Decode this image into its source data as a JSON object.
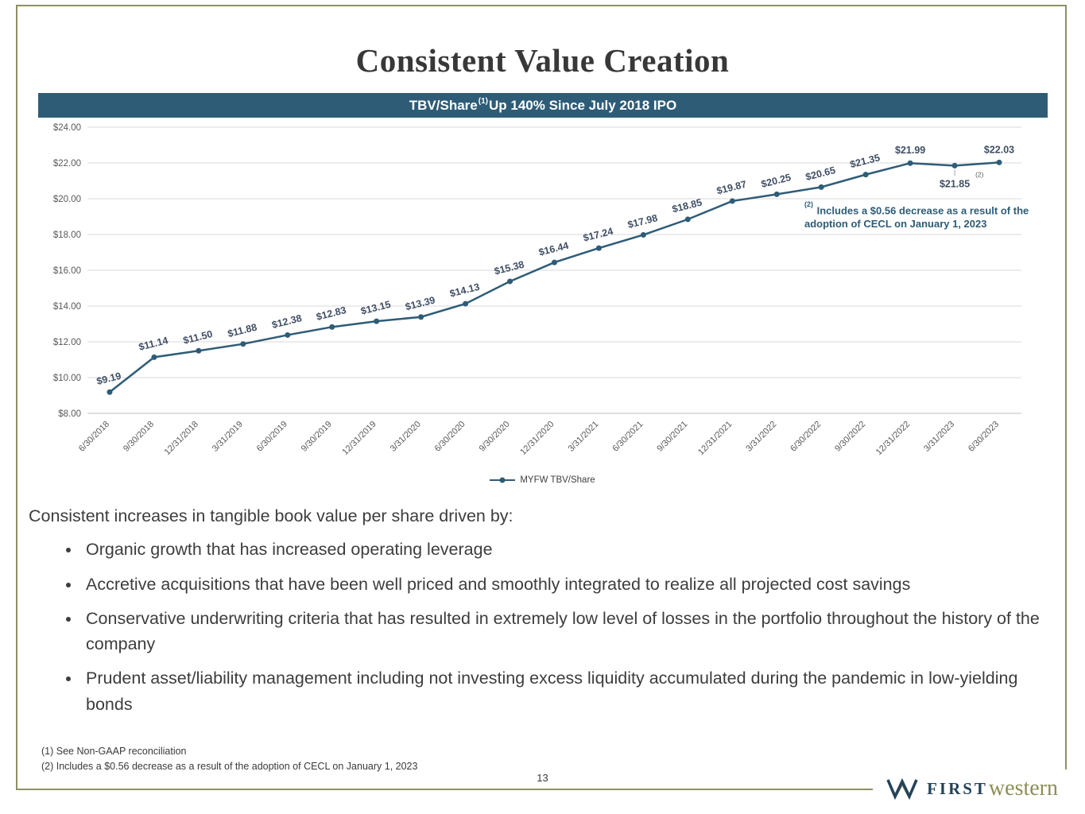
{
  "slide": {
    "title": "Consistent Value Creation",
    "banner": {
      "prefix": "TBV/Share",
      "sup": "(1)",
      "suffix": " Up 140% Since July 2018 IPO"
    },
    "page_number": "13"
  },
  "chart_data": {
    "type": "line",
    "title": "TBV/Share(1) Up 140% Since July 2018 IPO",
    "categories": [
      "6/30/2018",
      "9/30/2018",
      "12/31/2018",
      "3/31/2019",
      "6/30/2019",
      "9/30/2019",
      "12/31/2019",
      "3/31/2020",
      "6/30/2020",
      "9/30/2020",
      "12/31/2020",
      "3/31/2021",
      "6/30/2021",
      "9/30/2021",
      "12/31/2021",
      "3/31/2022",
      "6/30/2022",
      "9/30/2022",
      "12/31/2022",
      "3/31/2023",
      "6/30/2023"
    ],
    "values": [
      9.19,
      11.14,
      11.5,
      11.88,
      12.38,
      12.83,
      13.15,
      13.39,
      14.13,
      15.38,
      16.44,
      17.24,
      17.98,
      18.85,
      19.87,
      20.25,
      20.65,
      21.35,
      21.99,
      21.85,
      22.03
    ],
    "labels": [
      "$9.19",
      "$11.14",
      "$11.50",
      "$11.88",
      "$12.38",
      "$12.83",
      "$13.15",
      "$13.39",
      "$14.13",
      "$15.38",
      "$16.44",
      "$17.24",
      "$17.98",
      "$18.85",
      "$19.87",
      "$20.25",
      "$20.65",
      "$21.35",
      "$21.99",
      "$21.85",
      "$22.03"
    ],
    "ylim": [
      8,
      24
    ],
    "ytick_step": 2,
    "ytick_labels": [
      "$8.00",
      "$10.00",
      "$12.00",
      "$14.00",
      "$16.00",
      "$18.00",
      "$20.00",
      "$22.00",
      "$24.00"
    ],
    "legend": "MYFW TBV/Share",
    "line_color": "#2e5c77",
    "grid": true,
    "annotation": {
      "sup": "(2)",
      "text": " Includes a $0.56 decrease as a result of the adoption of CECL on January 1, 2023"
    },
    "point_note_sup": "(2)"
  },
  "body": {
    "intro": "Consistent increases in tangible book value per share driven by:",
    "bullets": [
      "Organic growth that has increased operating leverage",
      "Accretive acquisitions that have been well priced and smoothly integrated to realize all projected cost savings",
      "Conservative underwriting criteria that has resulted in extremely low level of losses in the portfolio throughout the history of the company",
      "Prudent asset/liability management including not investing excess liquidity accumulated during the pandemic in low-yielding bonds"
    ]
  },
  "footnotes": [
    "(1)  See Non-GAAP reconciliation",
    "(2)  Includes a $0.56 decrease as a result of the adoption of CECL on January 1, 2023"
  ],
  "logo": {
    "first": "FIRST",
    "western": "western"
  }
}
